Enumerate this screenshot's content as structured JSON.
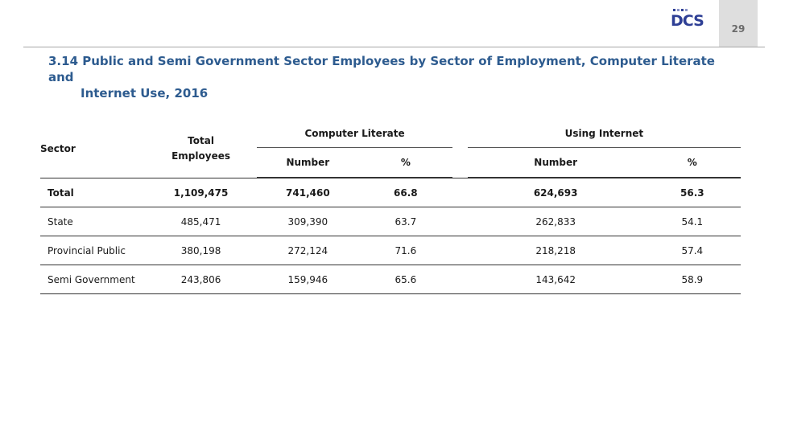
{
  "page": {
    "number": "29"
  },
  "logo": {
    "text": "DCS"
  },
  "title": {
    "line1": "3.14 Public and Semi Government Sector Employees by Sector of Employment, Computer Literate and",
    "line2": "Internet Use, 2016"
  },
  "table": {
    "headers": {
      "sector": "Sector",
      "total_employees": "Total Employees",
      "computer_literate": "Computer Literate",
      "using_internet": "Using Internet",
      "number": "Number",
      "percent": "%"
    },
    "rows": [
      {
        "sector": "Total",
        "total": "1,109,475",
        "cl_number": "741,460",
        "cl_pct": "66.8",
        "net_number": "624,693",
        "net_pct": "56.3"
      },
      {
        "sector": "State",
        "total": "485,471",
        "cl_number": "309,390",
        "cl_pct": "63.7",
        "net_number": "262,833",
        "net_pct": "54.1"
      },
      {
        "sector": "Provincial Public",
        "total": "380,198",
        "cl_number": "272,124",
        "cl_pct": "71.6",
        "net_number": "218,218",
        "net_pct": "57.4"
      },
      {
        "sector": "Semi Government",
        "total": "243,806",
        "cl_number": "159,946",
        "cl_pct": "65.6",
        "net_number": "143,642",
        "net_pct": "58.9"
      }
    ]
  }
}
